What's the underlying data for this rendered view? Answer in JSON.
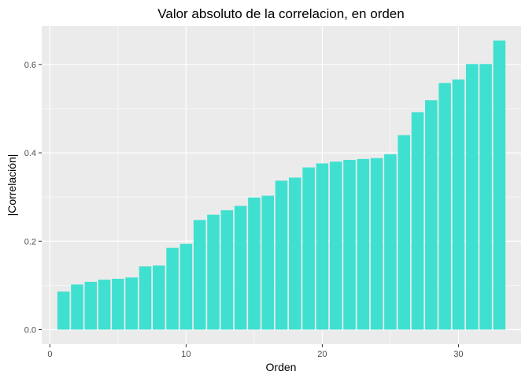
{
  "chart_data": {
    "type": "bar",
    "title": "Valor absoluto de la correlacion, en orden",
    "xlabel": "Orden",
    "ylabel": "|Correlación|",
    "x": [
      1,
      2,
      3,
      4,
      5,
      6,
      7,
      8,
      9,
      10,
      11,
      12,
      13,
      14,
      15,
      16,
      17,
      18,
      19,
      20,
      21,
      22,
      23,
      24,
      25,
      26,
      27,
      28,
      29,
      30,
      31,
      32,
      33
    ],
    "values": [
      0.086,
      0.102,
      0.108,
      0.113,
      0.115,
      0.118,
      0.143,
      0.145,
      0.185,
      0.194,
      0.248,
      0.26,
      0.27,
      0.28,
      0.299,
      0.303,
      0.337,
      0.344,
      0.367,
      0.376,
      0.38,
      0.384,
      0.386,
      0.388,
      0.397,
      0.44,
      0.492,
      0.519,
      0.558,
      0.566,
      0.601,
      0.601,
      0.654
    ],
    "xlim": [
      -0.6,
      34.6
    ],
    "ylim": [
      -0.033,
      0.687
    ],
    "xticks": [
      0,
      10,
      20,
      30
    ],
    "xtick_labels": [
      "0",
      "10",
      "20",
      "30"
    ],
    "yticks": [
      0.0,
      0.2,
      0.4,
      0.6
    ],
    "ytick_labels": [
      "0.0",
      "0.2",
      "0.4",
      "0.6"
    ],
    "grid": true,
    "bar_color": "#40E0D0",
    "panel_background": "#EBEBEB",
    "gridline_color": "#FFFFFF"
  }
}
